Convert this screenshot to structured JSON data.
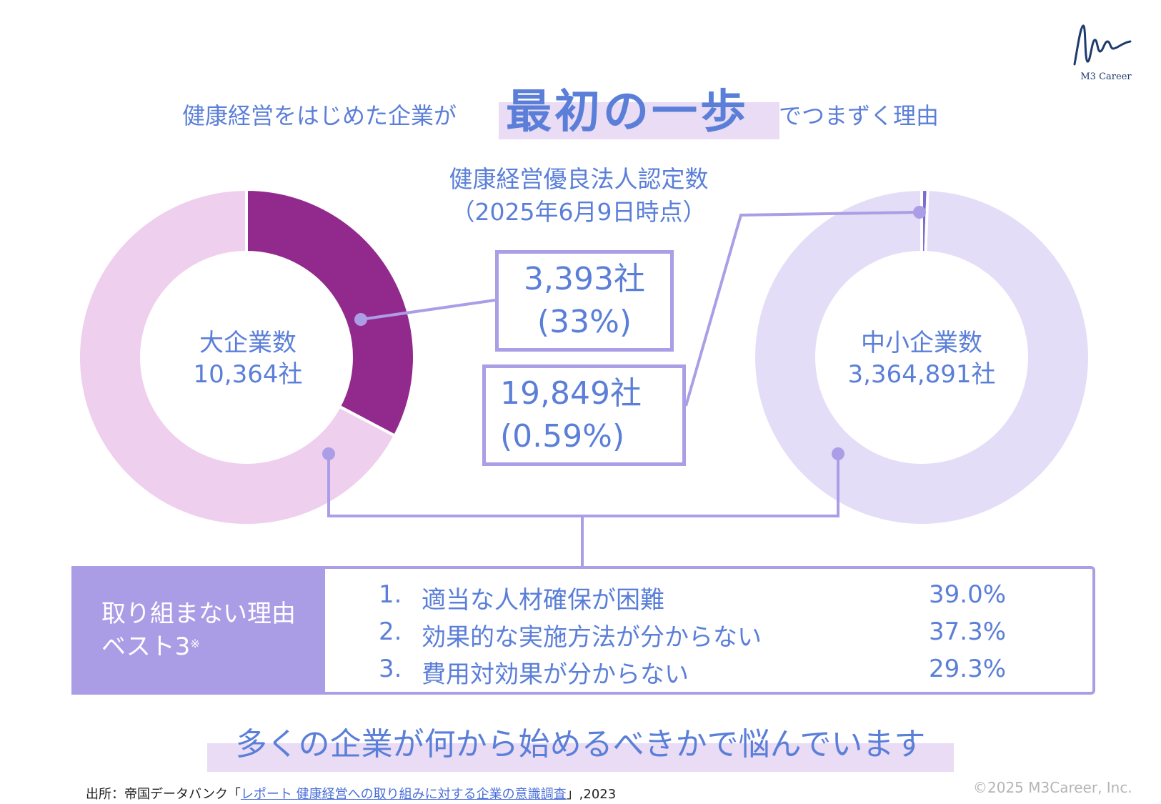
{
  "brand": {
    "logo_text": "M3 Career"
  },
  "headline": {
    "prefix": "健康経営をはじめた企業が",
    "key": "最初の一歩",
    "suffix": "でつまずく理由"
  },
  "subtitle": {
    "line1": "健康経営優良法人認定数",
    "line2": "（2025年6月9日時点）"
  },
  "callouts": {
    "large": {
      "count": "3,393社",
      "pct": "(33%)"
    },
    "sme": {
      "count": "19,849社",
      "pct": "(0.59%)"
    }
  },
  "donuts": {
    "large": {
      "title": "大企業数",
      "total": "10,364社"
    },
    "sme": {
      "title": "中小企業数",
      "total": "3,364,891社"
    }
  },
  "reasons": {
    "heading_line1": "取り組まない理由",
    "heading_line2": "ベスト3",
    "note_mark": "※",
    "items": [
      {
        "num": "1.",
        "text": "適当な人材確保が困難",
        "pct": "39.0%"
      },
      {
        "num": "2.",
        "text": "効果的な実施方法が分からない",
        "pct": "37.3%"
      },
      {
        "num": "3.",
        "text": "費用対効果が分からない",
        "pct": "29.3%"
      }
    ]
  },
  "conclusion": "多くの企業が何から始めるべきかで悩んでいます",
  "footer": {
    "source_prefix": "出所：帝国データバンク「",
    "source_link": "レポート 健康経営への取り組みに対する企業の意識調査",
    "source_suffix": "」,2023",
    "copyright": "©2025 M3Career, Inc."
  },
  "colors": {
    "large_certified": "#922a8d",
    "large_other": "#efcfee",
    "sme_certified": "#7b6cd0",
    "sme_other": "#e4ddf7",
    "connector": "#ab9ee6",
    "text": "#5b7fd8"
  },
  "chart_data": [
    {
      "type": "pie",
      "title": "大企業数",
      "total": 10364,
      "slices": [
        {
          "label": "3,393社",
          "value": 3393,
          "percent": 33
        },
        {
          "label": "",
          "value": 6971
        }
      ]
    },
    {
      "type": "pie",
      "title": "中小企業数",
      "total": 3364891,
      "slices": [
        {
          "label": "19,849社",
          "value": 19849,
          "percent": 0.59
        },
        {
          "label": "",
          "value": 3345042
        }
      ]
    }
  ]
}
